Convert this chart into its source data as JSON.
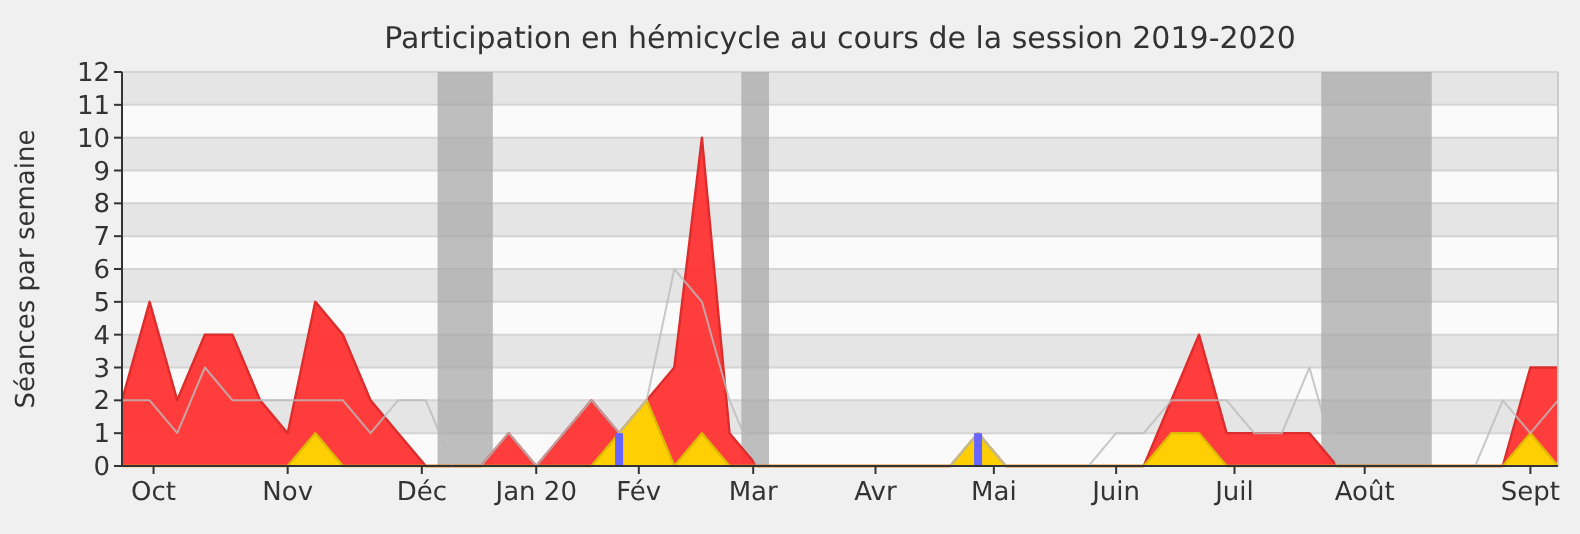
{
  "chart_data": {
    "type": "area",
    "title": "Participation en hémicycle au cours de la session 2019-2020",
    "ylabel": "Séances par semaine",
    "x": [
      "2019-09-23",
      "2019-09-30",
      "2019-10-07",
      "2019-10-14",
      "2019-10-21",
      "2019-10-28",
      "2019-11-04",
      "2019-11-11",
      "2019-11-18",
      "2019-11-25",
      "2019-12-02",
      "2019-12-09",
      "2019-12-16",
      "2019-12-23",
      "2019-12-30",
      "2020-01-06",
      "2020-01-13",
      "2020-01-20",
      "2020-01-27",
      "2020-02-03",
      "2020-02-10",
      "2020-02-17",
      "2020-02-24",
      "2020-03-02",
      "2020-03-09",
      "2020-03-16",
      "2020-03-23",
      "2020-03-30",
      "2020-04-06",
      "2020-04-13",
      "2020-04-20",
      "2020-04-27",
      "2020-05-04",
      "2020-05-11",
      "2020-05-18",
      "2020-05-25",
      "2020-06-01",
      "2020-06-08",
      "2020-06-15",
      "2020-06-22",
      "2020-06-29",
      "2020-07-06",
      "2020-07-13",
      "2020-07-20",
      "2020-07-27",
      "2020-08-03",
      "2020-08-10",
      "2020-08-17",
      "2020-08-24",
      "2020-08-31",
      "2020-09-07",
      "2020-09-14",
      "2020-09-21"
    ],
    "xlim": [
      "2019-09-23",
      "2020-09-21"
    ],
    "ylim": [
      0,
      12
    ],
    "yticks": [
      0,
      1,
      2,
      3,
      4,
      5,
      6,
      7,
      8,
      9,
      10,
      11,
      12
    ],
    "xticks": [
      {
        "value": "2019-10-01",
        "label": "Oct"
      },
      {
        "value": "2019-11-04",
        "label": "Nov"
      },
      {
        "value": "2019-12-08",
        "label": "Déc"
      },
      {
        "value": "2020-01-06",
        "label": "Jan 20"
      },
      {
        "value": "2020-02-01",
        "label": "Fév"
      },
      {
        "value": "2020-03-01",
        "label": "Mar"
      },
      {
        "value": "2020-04-01",
        "label": "Avr"
      },
      {
        "value": "2020-05-01",
        "label": "Mai"
      },
      {
        "value": "2020-06-01",
        "label": "Juin"
      },
      {
        "value": "2020-07-01",
        "label": "Juil"
      },
      {
        "value": "2020-08-03",
        "label": "Août"
      },
      {
        "value": "2020-09-14",
        "label": "Sept"
      }
    ],
    "grid": "y",
    "bands": [
      {
        "axis": "x",
        "from": "2019-12-12",
        "to": "2019-12-26",
        "color": "#aaaaaa"
      },
      {
        "axis": "x",
        "from": "2020-02-27",
        "to": "2020-03-05",
        "color": "#aaaaaa"
      },
      {
        "axis": "x",
        "from": "2020-07-23",
        "to": "2020-08-20",
        "color": "#aaaaaa"
      }
    ],
    "series": [
      {
        "color": "#ff3333",
        "values": [
          2,
          5,
          2,
          4,
          4,
          2,
          1,
          5,
          4,
          2,
          1,
          0,
          0,
          0,
          1,
          0,
          1,
          2,
          1,
          2,
          3,
          10,
          1,
          0,
          0,
          0,
          0,
          0,
          0,
          0,
          0,
          1,
          0,
          0,
          0,
          0,
          0,
          0,
          2,
          4,
          1,
          1,
          1,
          1,
          0,
          0,
          0,
          0,
          0,
          0,
          0,
          3,
          3
        ]
      },
      {
        "color": "#ffd700",
        "values": [
          0,
          0,
          0,
          0,
          0,
          0,
          0,
          1,
          0,
          0,
          0,
          0,
          0,
          0,
          0,
          0,
          0,
          0,
          1,
          2,
          0,
          1,
          0,
          0,
          0,
          0,
          0,
          0,
          0,
          0,
          0,
          1,
          0,
          0,
          0,
          0,
          0,
          0,
          1,
          1,
          0,
          0,
          0,
          0,
          0,
          0,
          0,
          0,
          0,
          0,
          0,
          1,
          0
        ]
      },
      {
        "type": "line",
        "color": "#bbbbbb",
        "values": [
          2,
          2,
          1,
          3,
          2,
          2,
          2,
          2,
          2,
          1,
          2,
          2,
          0,
          0,
          1,
          0,
          1,
          2,
          1,
          2,
          6,
          5,
          2,
          0,
          0,
          0,
          0,
          0,
          0,
          0,
          0,
          1,
          0,
          0,
          0,
          0,
          1,
          1,
          2,
          2,
          2,
          1,
          1,
          3,
          0,
          0,
          0,
          0,
          0,
          0,
          2,
          1,
          2
        ]
      },
      {
        "type": "bar",
        "color": "#6666ff",
        "x": [
          "2020-01-27",
          "2020-04-27"
        ],
        "values": [
          1,
          1
        ]
      }
    ]
  }
}
